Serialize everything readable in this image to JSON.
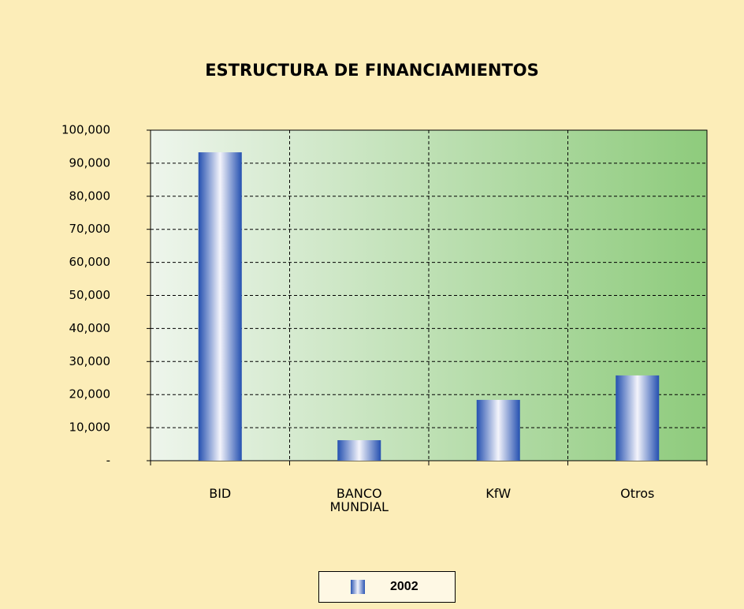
{
  "chart_data": {
    "type": "bar",
    "title": "ESTRUCTURA DE FINANCIAMIENTOS",
    "categories": [
      "BID",
      "BANCO MUNDIAL",
      "KfW",
      "Otros"
    ],
    "series": [
      {
        "name": "2002",
        "color": "#2b55b3",
        "values": [
          93300,
          6200,
          18400,
          25800
        ]
      }
    ],
    "ylim": [
      0,
      100000
    ],
    "yticks": [
      {
        "value": 0,
        "label": "-"
      },
      {
        "value": 10000,
        "label": "10,000"
      },
      {
        "value": 20000,
        "label": "20,000"
      },
      {
        "value": 30000,
        "label": "30,000"
      },
      {
        "value": 40000,
        "label": "40,000"
      },
      {
        "value": 50000,
        "label": "50,000"
      },
      {
        "value": 60000,
        "label": "60,000"
      },
      {
        "value": 70000,
        "label": "70,000"
      },
      {
        "value": 80000,
        "label": "80,000"
      },
      {
        "value": 90000,
        "label": "90,000"
      },
      {
        "value": 100000,
        "label": "100,000"
      }
    ],
    "grid": true,
    "legend": "bottom"
  }
}
